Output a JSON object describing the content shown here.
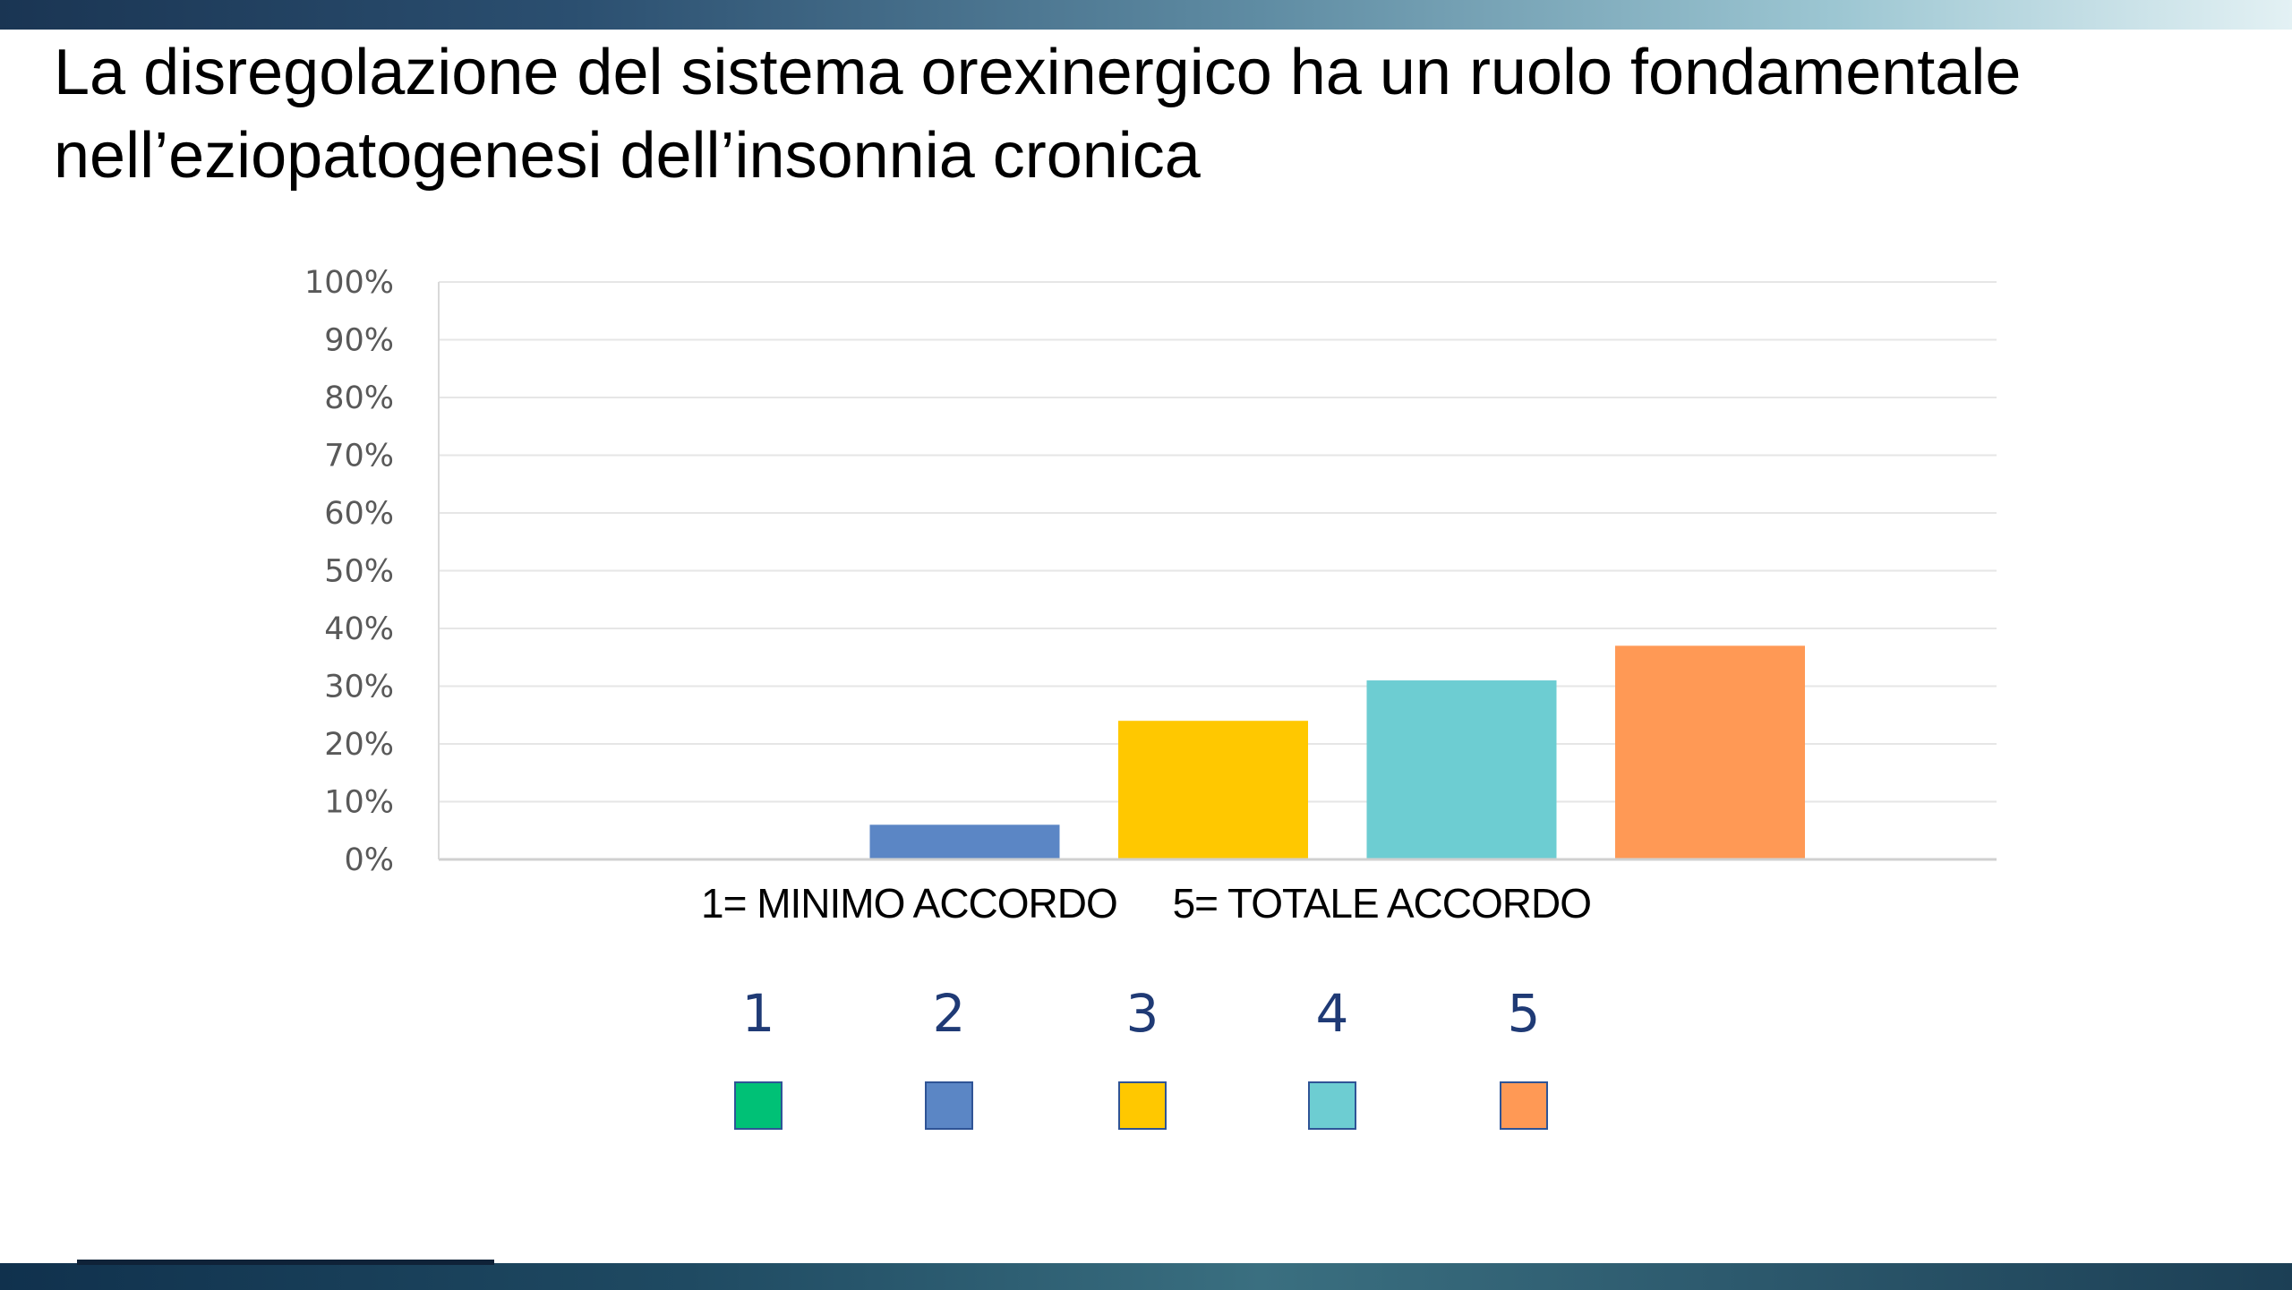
{
  "title": "La disregolazione del sistema orexinergico ha un ruolo fondamentale nell’eziopatogenesi dell’insonnia cronica",
  "chart_data": {
    "type": "bar",
    "title": "",
    "xlabel": "",
    "ylabel": "",
    "categories": [
      "1",
      "2",
      "3",
      "4",
      "5"
    ],
    "values": [
      0,
      6,
      24,
      31,
      37
    ],
    "colors": [
      "#00c176",
      "#5b86c5",
      "#ffc800",
      "#6dcdd2",
      "#ff9955"
    ],
    "ylim": [
      0,
      100
    ],
    "y_ticks": [
      "0%",
      "10%",
      "20%",
      "30%",
      "40%",
      "50%",
      "60%",
      "70%",
      "80%",
      "90%",
      "100%"
    ],
    "grid": true,
    "legend": "bottom"
  },
  "scale_note": {
    "min": "1= MINIMO ACCORDO",
    "max": "5= TOTALE ACCORDO"
  },
  "legend": [
    {
      "label": "1",
      "color": "#00c176"
    },
    {
      "label": "2",
      "color": "#5b86c5"
    },
    {
      "label": "3",
      "color": "#ffc800"
    },
    {
      "label": "4",
      "color": "#6dcdd2"
    },
    {
      "label": "5",
      "color": "#ff9955"
    }
  ]
}
